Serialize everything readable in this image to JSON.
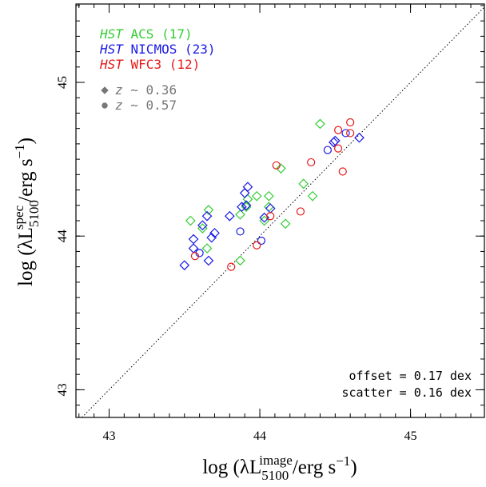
{
  "chart_data": {
    "type": "scatter",
    "x_label": {
      "main": "log (λL",
      "subscript": "5100",
      "superscript": "image",
      "unit": "/erg s",
      "exponent": "−1",
      "close": ")"
    },
    "y_label": {
      "main": "log (λL",
      "subscript": "5100",
      "superscript": "spec",
      "unit": "/erg s",
      "exponent": "−1",
      "close": ")"
    },
    "xlim": [
      42.78,
      45.49
    ],
    "ylim": [
      42.82,
      45.51
    ],
    "xticks": [
      43,
      44,
      45
    ],
    "yticks": [
      43,
      44,
      45
    ],
    "minor_tick_step": 0.1,
    "one_to_one_line": true,
    "series": [
      {
        "name": "HST ACS (17)",
        "color": "#33cc33",
        "x": [
          44.4,
          44.14,
          44.29,
          44.35,
          44.06,
          43.98,
          44.06,
          44.17,
          43.87,
          43.92,
          43.66,
          43.54,
          43.62,
          43.65,
          43.87,
          44.03,
          43.91
        ],
        "values": [
          44.73,
          44.44,
          44.34,
          44.26,
          44.26,
          44.26,
          44.19,
          44.08,
          44.14,
          44.24,
          44.17,
          44.1,
          44.05,
          43.92,
          43.84,
          44.1,
          44.19
        ],
        "markers": [
          "diamond",
          "diamond",
          "diamond",
          "diamond",
          "diamond",
          "diamond",
          "diamond",
          "diamond",
          "diamond",
          "diamond",
          "diamond",
          "diamond",
          "diamond",
          "diamond",
          "diamond",
          "diamond",
          "diamond"
        ]
      },
      {
        "name": "HST NICMOS (23)",
        "color": "#1a1ae6",
        "x": [
          43.92,
          43.9,
          43.91,
          43.88,
          43.8,
          44.07,
          44.03,
          43.65,
          43.62,
          43.7,
          43.68,
          43.56,
          43.56,
          43.66,
          43.5,
          44.5,
          44.49,
          44.66,
          43.87,
          44.01,
          43.6,
          44.45,
          44.57
        ],
        "values": [
          44.32,
          44.28,
          44.2,
          44.19,
          44.13,
          44.18,
          44.12,
          44.13,
          44.07,
          44.02,
          43.99,
          43.98,
          43.92,
          43.84,
          43.81,
          44.62,
          44.61,
          44.64,
          44.03,
          43.97,
          43.89,
          44.56,
          44.67
        ],
        "markers": [
          "diamond",
          "diamond",
          "diamond",
          "diamond",
          "diamond",
          "diamond",
          "diamond",
          "diamond",
          "diamond",
          "diamond",
          "diamond",
          "diamond",
          "diamond",
          "diamond",
          "diamond",
          "diamond",
          "diamond",
          "diamond",
          "circle",
          "circle",
          "circle",
          "circle",
          "circle"
        ]
      },
      {
        "name": "HST WFC3 (12)",
        "color": "#e61a1a",
        "x": [
          44.52,
          44.6,
          44.6,
          44.52,
          44.34,
          44.11,
          44.27,
          44.07,
          43.98,
          43.81,
          43.57,
          44.55
        ],
        "values": [
          44.69,
          44.74,
          44.67,
          44.57,
          44.48,
          44.46,
          44.16,
          44.13,
          43.94,
          43.8,
          43.87,
          44.42
        ],
        "markers": [
          "circle",
          "circle",
          "circle",
          "circle",
          "circle",
          "circle",
          "circle",
          "circle",
          "circle",
          "circle",
          "circle",
          "circle"
        ]
      }
    ],
    "marker_legend": [
      {
        "label": "z ∼ 0.36",
        "marker": "diamond"
      },
      {
        "label": "z ∼ 0.57",
        "marker": "circle"
      }
    ],
    "marker_legend_color": "#777777",
    "annotations": [
      "offset = 0.17 dex",
      "scatter = 0.16 dex"
    ]
  }
}
